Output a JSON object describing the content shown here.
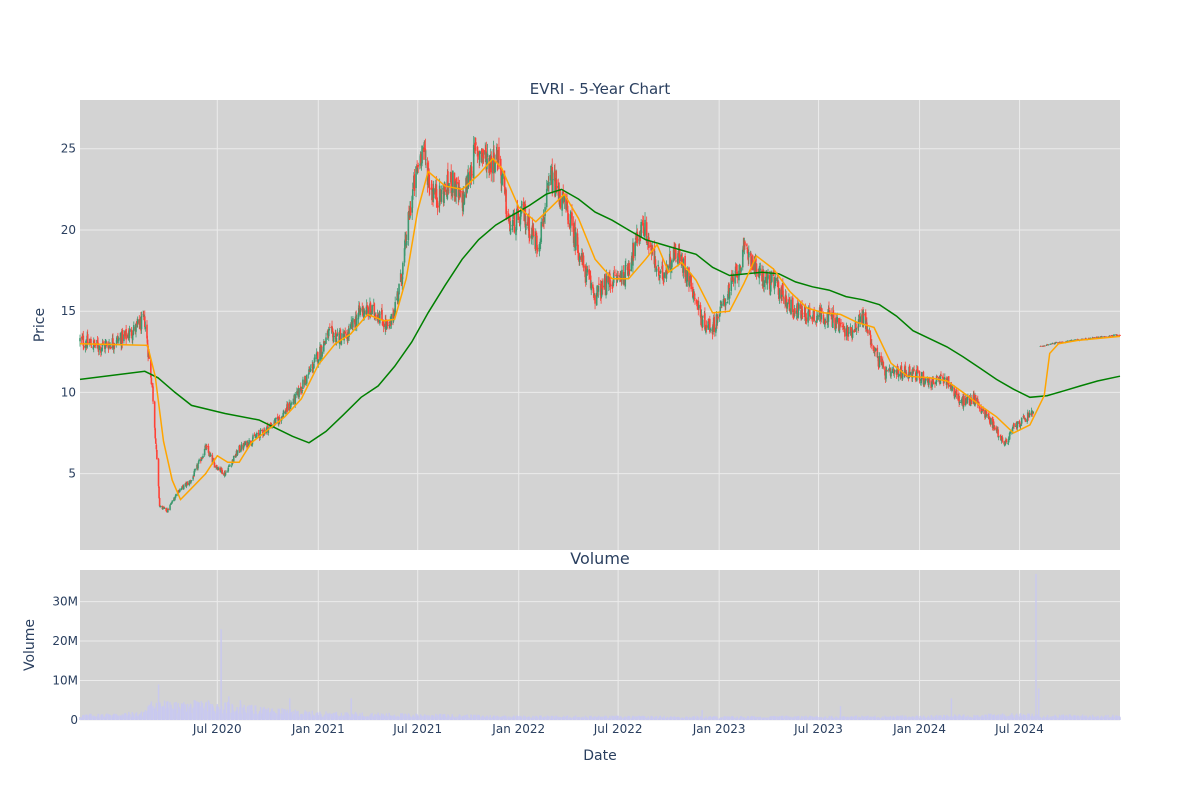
{
  "colors": {
    "plot_bg": "#d3d3d3",
    "grid": "#ebebeb",
    "text": "#2a3f5f",
    "candle_up": "#3d9970",
    "candle_down": "#ff4136",
    "ma_short": "#ffa500",
    "ma_long": "#008000",
    "volume_bar": "#c9c9ef"
  },
  "chart_data": [
    {
      "type": "candlestick",
      "title": "EVRI - 5-Year Chart",
      "ylabel": "Price",
      "ylim": [
        0.3,
        28
      ],
      "x_range": [
        "2019-10-25",
        "2024-12-31"
      ],
      "grid": true,
      "y_ticks": [
        5,
        10,
        15,
        20,
        25
      ],
      "x_ticks": [
        "2020-07-01",
        "2021-01-01",
        "2021-07-01",
        "2022-01-01",
        "2022-07-01",
        "2023-01-01",
        "2023-07-01",
        "2024-01-01",
        "2024-07-01"
      ],
      "price_anchors": [
        [
          "2019-10-25",
          13.2
        ],
        [
          "2019-12-01",
          12.8
        ],
        [
          "2020-01-15",
          13.4
        ],
        [
          "2020-02-20",
          14.4
        ],
        [
          "2020-03-05",
          10.2
        ],
        [
          "2020-03-18",
          3.0
        ],
        [
          "2020-04-01",
          2.7
        ],
        [
          "2020-04-20",
          3.9
        ],
        [
          "2020-05-15",
          4.6
        ],
        [
          "2020-06-10",
          6.6
        ],
        [
          "2020-06-25",
          5.6
        ],
        [
          "2020-07-15",
          5.0
        ],
        [
          "2020-08-10",
          6.5
        ],
        [
          "2020-09-15",
          7.4
        ],
        [
          "2020-10-20",
          8.3
        ],
        [
          "2020-11-20",
          9.6
        ],
        [
          "2020-12-20",
          11.5
        ],
        [
          "2021-01-20",
          13.6
        ],
        [
          "2021-02-20",
          13.3
        ],
        [
          "2021-03-20",
          15.1
        ],
        [
          "2021-04-20",
          14.9
        ],
        [
          "2021-05-10",
          13.8
        ],
        [
          "2021-06-01",
          17.0
        ],
        [
          "2021-06-20",
          22.0
        ],
        [
          "2021-07-10",
          25.2
        ],
        [
          "2021-07-25",
          22.5
        ],
        [
          "2021-08-10",
          22.0
        ],
        [
          "2021-09-01",
          23.0
        ],
        [
          "2021-09-20",
          21.6
        ],
        [
          "2021-10-15",
          25.0
        ],
        [
          "2021-11-10",
          24.2
        ],
        [
          "2021-11-25",
          24.6
        ],
        [
          "2021-12-15",
          20.2
        ],
        [
          "2022-01-10",
          21.0
        ],
        [
          "2022-02-05",
          19.0
        ],
        [
          "2022-03-01",
          23.2
        ],
        [
          "2022-04-01",
          21.0
        ],
        [
          "2022-05-01",
          17.5
        ],
        [
          "2022-05-20",
          16.0
        ],
        [
          "2022-06-20",
          16.9
        ],
        [
          "2022-07-15",
          17.3
        ],
        [
          "2022-08-15",
          20.4
        ],
        [
          "2022-09-15",
          17.0
        ],
        [
          "2022-10-15",
          18.7
        ],
        [
          "2022-11-10",
          16.8
        ],
        [
          "2022-12-01",
          14.4
        ],
        [
          "2022-12-20",
          14.0
        ],
        [
          "2023-01-20",
          16.3
        ],
        [
          "2023-02-20",
          18.9
        ],
        [
          "2023-03-15",
          17.2
        ],
        [
          "2023-04-15",
          16.6
        ],
        [
          "2023-05-15",
          15.1
        ],
        [
          "2023-06-15",
          14.8
        ],
        [
          "2023-07-20",
          14.7
        ],
        [
          "2023-08-25",
          13.6
        ],
        [
          "2023-09-20",
          14.7
        ],
        [
          "2023-10-15",
          12.2
        ],
        [
          "2023-11-01",
          11.1
        ],
        [
          "2023-12-15",
          11.3
        ],
        [
          "2024-01-20",
          10.6
        ],
        [
          "2024-02-20",
          10.8
        ],
        [
          "2024-03-15",
          9.4
        ],
        [
          "2024-04-10",
          9.6
        ],
        [
          "2024-05-10",
          8.2
        ],
        [
          "2024-06-05",
          6.8
        ],
        [
          "2024-06-20",
          7.8
        ],
        [
          "2024-07-20",
          8.6
        ],
        [
          "2024-08-01",
          9.1
        ],
        [
          "2024-08-08",
          12.85
        ],
        [
          "2024-09-15",
          13.1
        ],
        [
          "2024-11-01",
          13.3
        ],
        [
          "2024-12-31",
          13.55
        ]
      ],
      "ma_short": [
        [
          "2019-10-25",
          13.0
        ],
        [
          "2020-02-25",
          12.9
        ],
        [
          "2020-03-10",
          11.0
        ],
        [
          "2020-03-25",
          7.0
        ],
        [
          "2020-04-10",
          4.6
        ],
        [
          "2020-04-25",
          3.4
        ],
        [
          "2020-05-15",
          4.1
        ],
        [
          "2020-06-10",
          5.0
        ],
        [
          "2020-07-01",
          6.1
        ],
        [
          "2020-07-20",
          5.7
        ],
        [
          "2020-08-10",
          5.7
        ],
        [
          "2020-09-01",
          6.9
        ],
        [
          "2020-10-01",
          7.7
        ],
        [
          "2020-11-01",
          8.5
        ],
        [
          "2020-12-01",
          9.6
        ],
        [
          "2021-01-01",
          11.7
        ],
        [
          "2021-02-01",
          13.0
        ],
        [
          "2021-03-01",
          13.6
        ],
        [
          "2021-04-01",
          14.8
        ],
        [
          "2021-05-01",
          14.4
        ],
        [
          "2021-05-20",
          14.5
        ],
        [
          "2021-06-10",
          17.0
        ],
        [
          "2021-07-01",
          21.2
        ],
        [
          "2021-07-20",
          23.6
        ],
        [
          "2021-08-20",
          22.7
        ],
        [
          "2021-09-20",
          22.5
        ],
        [
          "2021-10-20",
          23.4
        ],
        [
          "2021-11-15",
          24.4
        ],
        [
          "2021-12-01",
          23.8
        ],
        [
          "2022-01-01",
          21.4
        ],
        [
          "2022-02-01",
          20.5
        ],
        [
          "2022-03-01",
          21.4
        ],
        [
          "2022-03-25",
          22.2
        ],
        [
          "2022-04-20",
          20.7
        ],
        [
          "2022-05-20",
          18.2
        ],
        [
          "2022-06-20",
          17.0
        ],
        [
          "2022-07-20",
          17.0
        ],
        [
          "2022-08-20",
          18.2
        ],
        [
          "2022-09-10",
          19.1
        ],
        [
          "2022-10-01",
          17.4
        ],
        [
          "2022-10-25",
          18.0
        ],
        [
          "2022-11-20",
          16.9
        ],
        [
          "2022-12-20",
          14.9
        ],
        [
          "2023-01-20",
          15.0
        ],
        [
          "2023-02-15",
          16.7
        ],
        [
          "2023-03-10",
          18.4
        ],
        [
          "2023-04-10",
          17.6
        ],
        [
          "2023-05-10",
          16.2
        ],
        [
          "2023-06-10",
          15.2
        ],
        [
          "2023-07-10",
          14.9
        ],
        [
          "2023-08-10",
          14.8
        ],
        [
          "2023-09-10",
          14.3
        ],
        [
          "2023-10-10",
          14.0
        ],
        [
          "2023-11-10",
          11.8
        ],
        [
          "2023-12-10",
          11.0
        ],
        [
          "2024-01-20",
          10.9
        ],
        [
          "2024-02-20",
          10.7
        ],
        [
          "2024-03-20",
          10.0
        ],
        [
          "2024-04-20",
          9.2
        ],
        [
          "2024-05-20",
          8.5
        ],
        [
          "2024-06-20",
          7.5
        ],
        [
          "2024-07-20",
          8.0
        ],
        [
          "2024-08-15",
          9.8
        ],
        [
          "2024-08-25",
          12.4
        ],
        [
          "2024-09-10",
          13.0
        ],
        [
          "2024-10-15",
          13.2
        ],
        [
          "2024-12-31",
          13.45
        ]
      ],
      "ma_long": [
        [
          "2019-10-25",
          10.8
        ],
        [
          "2020-02-20",
          11.3
        ],
        [
          "2020-03-15",
          10.9
        ],
        [
          "2020-04-15",
          10.0
        ],
        [
          "2020-05-15",
          9.2
        ],
        [
          "2020-07-15",
          8.7
        ],
        [
          "2020-09-15",
          8.3
        ],
        [
          "2020-11-15",
          7.3
        ],
        [
          "2020-12-15",
          6.9
        ],
        [
          "2021-01-15",
          7.6
        ],
        [
          "2021-02-15",
          8.6
        ],
        [
          "2021-03-20",
          9.7
        ],
        [
          "2021-04-20",
          10.4
        ],
        [
          "2021-05-20",
          11.6
        ],
        [
          "2021-06-20",
          13.1
        ],
        [
          "2021-07-20",
          14.9
        ],
        [
          "2021-08-20",
          16.6
        ],
        [
          "2021-09-20",
          18.2
        ],
        [
          "2021-10-20",
          19.4
        ],
        [
          "2021-11-20",
          20.3
        ],
        [
          "2021-12-20",
          20.9
        ],
        [
          "2022-01-20",
          21.5
        ],
        [
          "2022-02-20",
          22.2
        ],
        [
          "2022-03-20",
          22.5
        ],
        [
          "2022-04-20",
          21.9
        ],
        [
          "2022-05-20",
          21.1
        ],
        [
          "2022-06-20",
          20.6
        ],
        [
          "2022-07-20",
          20.0
        ],
        [
          "2022-08-20",
          19.4
        ],
        [
          "2022-09-20",
          19.1
        ],
        [
          "2022-10-20",
          18.8
        ],
        [
          "2022-11-20",
          18.5
        ],
        [
          "2022-12-20",
          17.7
        ],
        [
          "2023-01-20",
          17.2
        ],
        [
          "2023-02-20",
          17.3
        ],
        [
          "2023-03-20",
          17.4
        ],
        [
          "2023-04-20",
          17.3
        ],
        [
          "2023-05-20",
          16.8
        ],
        [
          "2023-06-20",
          16.5
        ],
        [
          "2023-07-20",
          16.3
        ],
        [
          "2023-08-20",
          15.9
        ],
        [
          "2023-09-20",
          15.7
        ],
        [
          "2023-10-20",
          15.4
        ],
        [
          "2023-11-20",
          14.7
        ],
        [
          "2023-12-20",
          13.8
        ],
        [
          "2024-01-20",
          13.3
        ],
        [
          "2024-02-20",
          12.8
        ],
        [
          "2024-03-20",
          12.2
        ],
        [
          "2024-04-20",
          11.5
        ],
        [
          "2024-05-20",
          10.8
        ],
        [
          "2024-06-20",
          10.2
        ],
        [
          "2024-07-20",
          9.7
        ],
        [
          "2024-08-20",
          9.8
        ],
        [
          "2024-09-20",
          10.1
        ],
        [
          "2024-10-20",
          10.4
        ],
        [
          "2024-11-20",
          10.7
        ],
        [
          "2024-12-31",
          11.0
        ]
      ],
      "gap": [
        "2024-07-29",
        "2024-08-07"
      ]
    },
    {
      "type": "bar",
      "title": "Volume",
      "xlabel": "Date",
      "ylabel": "Volume",
      "ylim": [
        0,
        38000000
      ],
      "y_ticks": [
        0,
        10000000,
        20000000,
        30000000
      ],
      "y_tick_labels": [
        "0",
        "10M",
        "20M",
        "30M"
      ],
      "x_tick_labels": [
        "Jul 2020",
        "Jan 2021",
        "Jul 2021",
        "Jan 2022",
        "Jul 2022",
        "Jan 2023",
        "Jul 2023",
        "Jan 2024",
        "Jul 2024"
      ],
      "volume_anchors": [
        [
          "2019-10-25",
          1000000
        ],
        [
          "2020-02-15",
          1500000
        ],
        [
          "2020-03-10",
          4000000
        ],
        [
          "2020-04-20",
          3000000
        ],
        [
          "2020-06-01",
          3500000
        ],
        [
          "2020-08-01",
          3000000
        ],
        [
          "2020-10-01",
          2200000
        ],
        [
          "2021-01-01",
          1500000
        ],
        [
          "2021-06-01",
          1200000
        ],
        [
          "2022-01-01",
          800000
        ],
        [
          "2023-01-01",
          700000
        ],
        [
          "2024-01-01",
          800000
        ],
        [
          "2024-07-01",
          1200000
        ],
        [
          "2024-08-20",
          1000000
        ],
        [
          "2024-12-31",
          900000
        ]
      ],
      "volume_spikes": [
        [
          "2020-03-16",
          9000000
        ],
        [
          "2020-04-06",
          4500000
        ],
        [
          "2020-06-15",
          5000000
        ],
        [
          "2020-07-08",
          23000000
        ],
        [
          "2020-07-22",
          6000000
        ],
        [
          "2020-08-12",
          5000000
        ],
        [
          "2020-11-10",
          5500000
        ],
        [
          "2021-03-02",
          5500000
        ],
        [
          "2022-12-01",
          2500000
        ],
        [
          "2023-08-10",
          3500000
        ],
        [
          "2024-02-28",
          5500000
        ],
        [
          "2024-07-31",
          37000000
        ],
        [
          "2024-08-05",
          8000000
        ]
      ]
    }
  ]
}
